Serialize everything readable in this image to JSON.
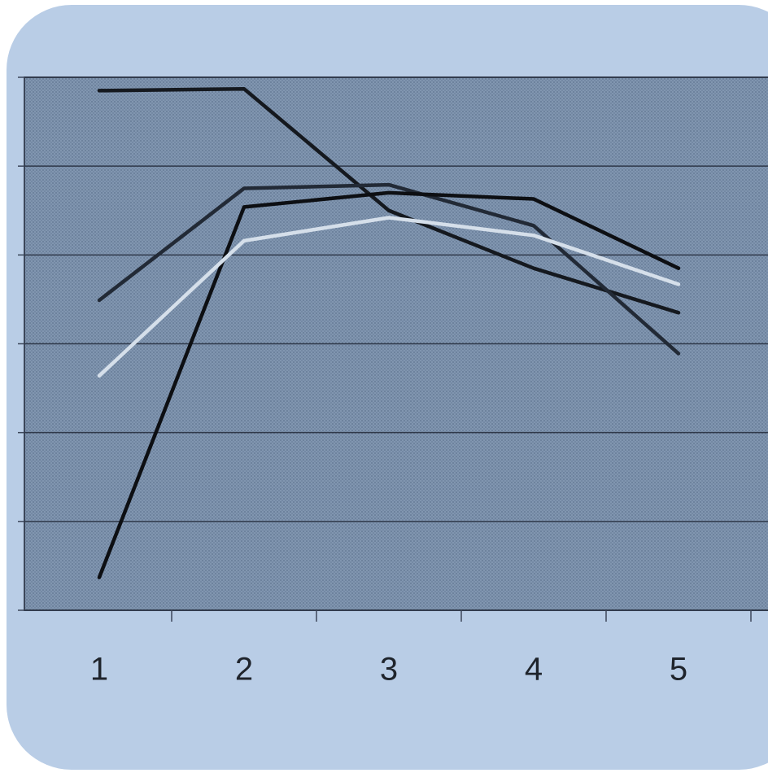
{
  "chart_data": {
    "type": "line",
    "categories": [
      "1",
      "2",
      "3",
      "4",
      "5"
    ],
    "series": [
      {
        "color": "#15191f",
        "values": [
          5.85,
          5.87,
          4.5,
          3.85,
          3.35
        ]
      },
      {
        "color": "#222a36",
        "values": [
          3.49,
          4.75,
          4.79,
          4.33,
          2.89
        ]
      },
      {
        "color": "#0d0f13",
        "values": [
          0.37,
          4.54,
          4.7,
          4.63,
          3.85
        ]
      },
      {
        "color": "#d5dfea",
        "values": [
          2.64,
          4.16,
          4.42,
          4.22,
          3.67
        ]
      }
    ],
    "ylim": [
      0,
      6
    ],
    "yticks": [
      0,
      1,
      2,
      3,
      4,
      5,
      6
    ],
    "grid": true
  }
}
